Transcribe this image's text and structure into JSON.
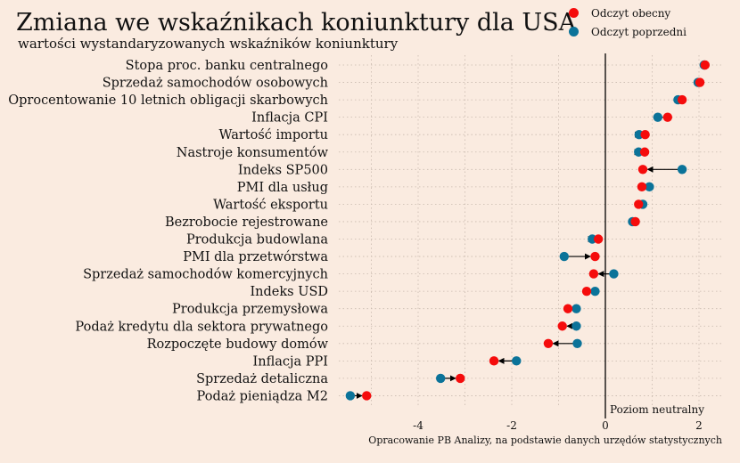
{
  "colors": {
    "background": "#faebe0",
    "current": "#f50c0c",
    "previous": "#0b7399",
    "arrow": "#000000",
    "grid": "#c8b9ad"
  },
  "chart_data": {
    "type": "scatter",
    "title": "Zmiana we wskaźnikach koniunktury dla USA",
    "subtitle": "wartości wystandaryzowanych wskaźników koniunktury",
    "legend": {
      "placement": "top-right",
      "current": "Odczyt obecny",
      "previous": "Odczyt poprzedni"
    },
    "annotation": "Poziom neutralny",
    "source": "Opracowanie PB Analizy, na podstawie danych urzędów statystycznych",
    "xlim": [
      -5.5,
      2.4
    ],
    "xticks": [
      -4,
      -2,
      0,
      2
    ],
    "xtick_labels": [
      "-4",
      "-2",
      "0",
      "2"
    ],
    "grid": true,
    "categories": [
      "Stopa proc. banku centralnego",
      "Sprzedaż samochodów osobowych",
      "Oprocentowanie 10 letnich obligacji skarbowych",
      "Inflacja CPI",
      "Wartość importu",
      "Nastroje konsumentów",
      "Indeks SP500",
      "PMI dla usług",
      "Wartość eksportu",
      "Bezrobocie rejestrowane",
      "Produkcja budowlana",
      "PMI dla przetwórstwa",
      "Sprzedaż samochodów komercyjnych",
      "Indeks USD",
      "Produkcja przemysłowa",
      "Podaż kredytu dla sektora prywatnego",
      "Rozpoczęte budowy domów",
      "Inflacja PPI",
      "Sprzedaż detaliczna",
      "Podaż pieniądza M2"
    ],
    "series": [
      {
        "name": "Odczyt obecny",
        "values": [
          2.13,
          2.02,
          1.64,
          1.33,
          0.85,
          0.84,
          0.8,
          0.78,
          0.71,
          0.64,
          -0.15,
          -0.22,
          -0.25,
          -0.4,
          -0.8,
          -0.92,
          -1.22,
          -2.38,
          -3.1,
          -5.1
        ]
      },
      {
        "name": "Odczyt poprzedni",
        "values": [
          2.11,
          1.98,
          1.55,
          1.12,
          0.72,
          0.71,
          1.64,
          0.94,
          0.8,
          0.58,
          -0.28,
          -0.88,
          0.18,
          -0.22,
          -0.62,
          -0.62,
          -0.6,
          -1.9,
          -3.52,
          -5.45
        ]
      }
    ]
  }
}
